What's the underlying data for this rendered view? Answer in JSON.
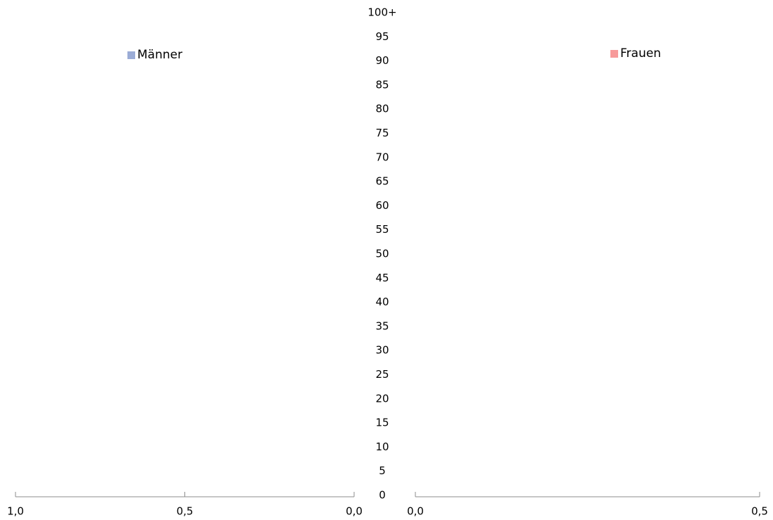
{
  "chart_data": {
    "type": "bar",
    "orientation": "horizontal",
    "subtype": "population-pyramid",
    "age_labels": [
      "0",
      "5",
      "10",
      "15",
      "20",
      "25",
      "30",
      "35",
      "40",
      "45",
      "50",
      "55",
      "60",
      "65",
      "70",
      "75",
      "80",
      "85",
      "90",
      "95",
      "100+"
    ],
    "series": [
      {
        "name": "Männer",
        "color": "#9bacd6",
        "values": []
      },
      {
        "name": "Frauen",
        "color": "#f79a9a",
        "values": []
      }
    ],
    "left_axis": {
      "ticks": [
        "0,0",
        "0,5",
        "1,0"
      ],
      "range": [
        0,
        1.0
      ],
      "direction": "reversed"
    },
    "right_axis": {
      "ticks": [
        "0,0",
        "0,5"
      ],
      "range": [
        0,
        0.5
      ]
    },
    "grid": false,
    "legend_placement": "inside-top"
  },
  "legend": {
    "men": "Männer",
    "women": "Frauen"
  },
  "colors": {
    "men": "#9bacd6",
    "women": "#f79a9a",
    "axis": "#8c8c8c"
  }
}
